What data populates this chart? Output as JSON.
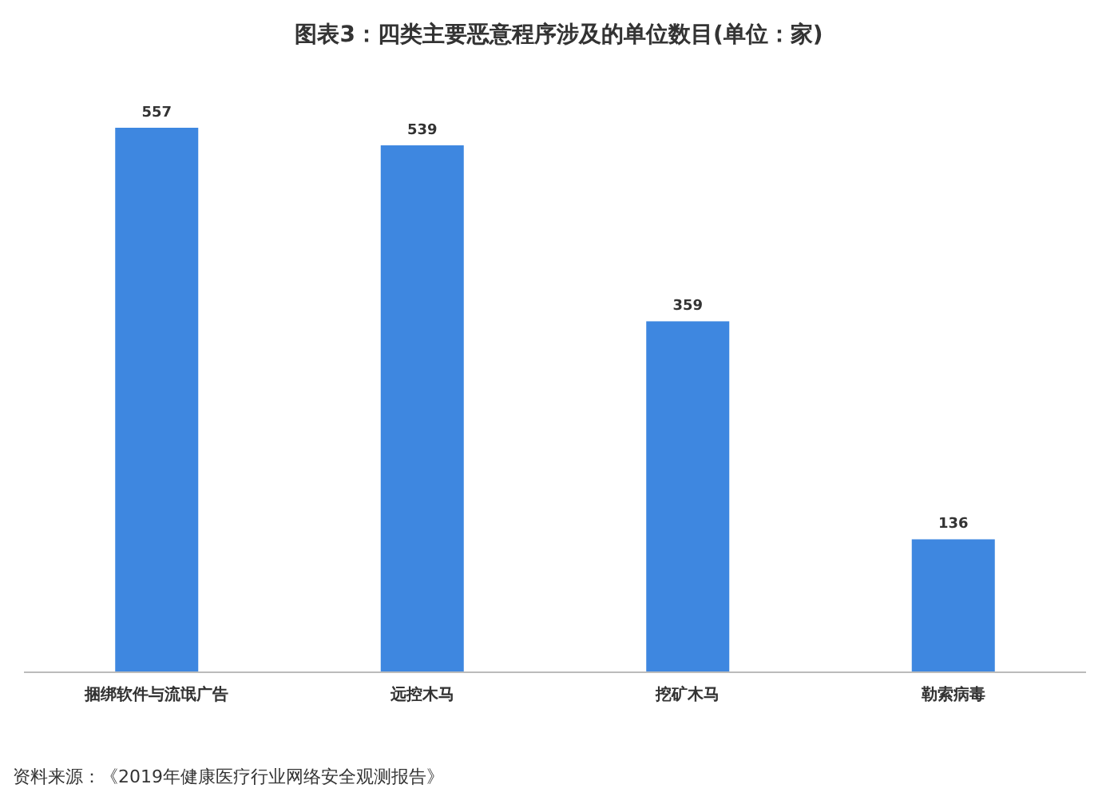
{
  "chart_data": {
    "type": "bar",
    "title": "图表3：四类主要恶意程序涉及的单位数目(单位：家)",
    "categories": [
      "捆绑软件与流氓广告",
      "远控木马",
      "挖矿木马",
      "勒索病毒"
    ],
    "values": [
      557,
      539,
      359,
      136
    ],
    "color": "#3e87e0",
    "data_labels": true,
    "annotations": [
      "资料来源：《2019年健康医疗行业网络安全观测报告》"
    ]
  }
}
